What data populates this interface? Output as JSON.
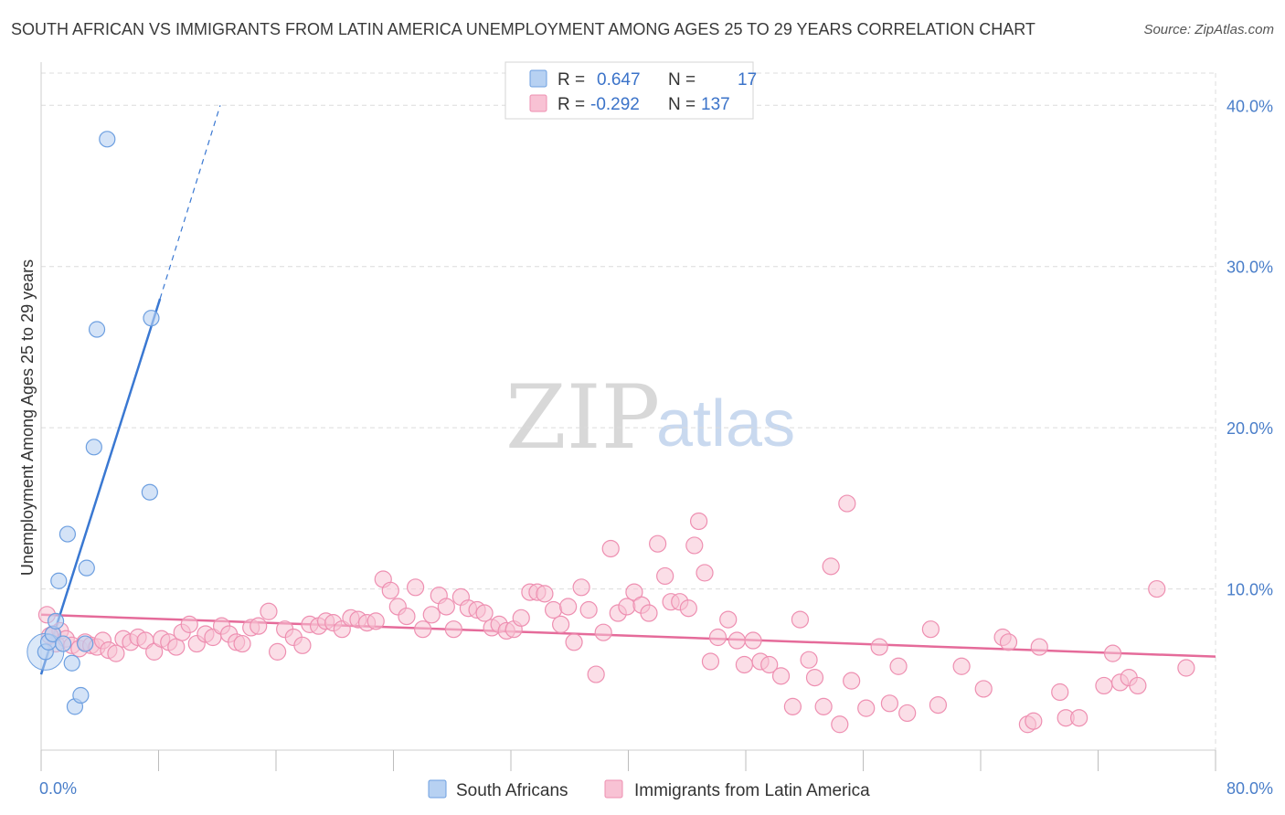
{
  "title": "SOUTH AFRICAN VS IMMIGRANTS FROM LATIN AMERICA UNEMPLOYMENT AMONG AGES 25 TO 29 YEARS CORRELATION CHART",
  "source": "Source: ZipAtlas.com",
  "watermark": {
    "zip": "ZIP",
    "atlas": "atlas"
  },
  "legend": {
    "series1": {
      "r_label": "R =",
      "r_value": "0.647",
      "n_label": "N =",
      "n_value": "17"
    },
    "series2": {
      "r_label": "R =",
      "r_value": "-0.292",
      "n_label": "N =",
      "n_value": "137"
    }
  },
  "colors": {
    "blue": "#3a78d2",
    "blue_fill": "#b7d1f2",
    "blue_stroke": "#6d9fe0",
    "pink": "#e56b9a",
    "pink_fill": "#f8c2d4",
    "pink_stroke": "#ee8fb1",
    "grid": "#dcdcdc",
    "tick_text": "#4a7ec9"
  },
  "chart_data": {
    "type": "scatter",
    "title": "SOUTH AFRICAN VS IMMIGRANTS FROM LATIN AMERICA UNEMPLOYMENT AMONG AGES 25 TO 29 YEARS CORRELATION CHART",
    "xlabel": "",
    "ylabel": "Unemployment Among Ages 25 to 29 years",
    "xlim": [
      0,
      80
    ],
    "ylim": [
      0,
      42
    ],
    "x_tick_labels": [
      "0.0%",
      "80.0%"
    ],
    "y_ticks": [
      10,
      20,
      30,
      40
    ],
    "y_tick_labels": [
      "10.0%",
      "20.0%",
      "30.0%",
      "40.0%"
    ],
    "grid": true,
    "legend_position": "top-center",
    "series": [
      {
        "name": "South Africans",
        "color": "#6d9fe0",
        "points": [
          [
            0.3,
            6.1
          ],
          [
            0.5,
            6.7
          ],
          [
            0.8,
            7.2
          ],
          [
            1.0,
            8.0
          ],
          [
            1.2,
            10.5
          ],
          [
            1.5,
            6.6
          ],
          [
            1.8,
            13.4
          ],
          [
            2.1,
            5.4
          ],
          [
            2.3,
            2.7
          ],
          [
            2.7,
            3.4
          ],
          [
            3.0,
            6.6
          ],
          [
            3.1,
            11.3
          ],
          [
            3.6,
            18.8
          ],
          [
            3.8,
            26.1
          ],
          [
            4.5,
            37.9
          ],
          [
            7.4,
            16.0
          ],
          [
            7.5,
            26.8
          ]
        ],
        "trend": {
          "x": [
            0.0,
            8.1
          ],
          "y": [
            4.7,
            28.0
          ],
          "dash_to": [
            12.2,
            40.0
          ]
        }
      },
      {
        "name": "Immigrants from Latin America",
        "color": "#ee8fb1",
        "points": [
          [
            0.4,
            8.4
          ],
          [
            0.8,
            7.2
          ],
          [
            1.0,
            6.6
          ],
          [
            1.3,
            7.4
          ],
          [
            1.7,
            6.9
          ],
          [
            2.1,
            6.5
          ],
          [
            2.6,
            6.3
          ],
          [
            3.0,
            6.7
          ],
          [
            3.4,
            6.5
          ],
          [
            3.8,
            6.4
          ],
          [
            4.2,
            6.8
          ],
          [
            4.6,
            6.2
          ],
          [
            5.1,
            6.0
          ],
          [
            5.6,
            6.9
          ],
          [
            6.1,
            6.7
          ],
          [
            6.6,
            7.0
          ],
          [
            7.1,
            6.8
          ],
          [
            7.7,
            6.1
          ],
          [
            8.2,
            6.9
          ],
          [
            8.7,
            6.7
          ],
          [
            9.2,
            6.4
          ],
          [
            9.6,
            7.3
          ],
          [
            10.1,
            7.8
          ],
          [
            10.6,
            6.6
          ],
          [
            11.2,
            7.2
          ],
          [
            11.7,
            7.0
          ],
          [
            12.3,
            7.7
          ],
          [
            12.8,
            7.2
          ],
          [
            13.3,
            6.7
          ],
          [
            13.7,
            6.6
          ],
          [
            14.3,
            7.6
          ],
          [
            14.8,
            7.7
          ],
          [
            15.5,
            8.6
          ],
          [
            16.1,
            6.1
          ],
          [
            16.6,
            7.5
          ],
          [
            17.2,
            7.0
          ],
          [
            17.8,
            6.5
          ],
          [
            18.3,
            7.8
          ],
          [
            18.9,
            7.7
          ],
          [
            19.4,
            8.0
          ],
          [
            19.9,
            7.9
          ],
          [
            20.5,
            7.5
          ],
          [
            21.1,
            8.2
          ],
          [
            21.6,
            8.1
          ],
          [
            22.2,
            7.9
          ],
          [
            22.8,
            8.0
          ],
          [
            23.3,
            10.6
          ],
          [
            23.8,
            9.9
          ],
          [
            24.3,
            8.9
          ],
          [
            24.9,
            8.3
          ],
          [
            25.5,
            10.1
          ],
          [
            26.0,
            7.5
          ],
          [
            26.6,
            8.4
          ],
          [
            27.1,
            9.6
          ],
          [
            27.6,
            8.9
          ],
          [
            28.1,
            7.5
          ],
          [
            28.6,
            9.5
          ],
          [
            29.1,
            8.8
          ],
          [
            29.7,
            8.7
          ],
          [
            30.2,
            8.5
          ],
          [
            30.7,
            7.6
          ],
          [
            31.2,
            7.8
          ],
          [
            31.7,
            7.4
          ],
          [
            32.2,
            7.5
          ],
          [
            32.7,
            8.2
          ],
          [
            33.3,
            9.8
          ],
          [
            33.8,
            9.8
          ],
          [
            34.3,
            9.7
          ],
          [
            34.9,
            8.7
          ],
          [
            35.4,
            7.8
          ],
          [
            35.9,
            8.9
          ],
          [
            36.3,
            6.7
          ],
          [
            36.8,
            10.1
          ],
          [
            37.3,
            8.7
          ],
          [
            37.8,
            4.7
          ],
          [
            38.3,
            7.3
          ],
          [
            38.8,
            12.5
          ],
          [
            39.3,
            8.5
          ],
          [
            39.9,
            8.9
          ],
          [
            40.4,
            9.8
          ],
          [
            40.9,
            9.0
          ],
          [
            41.4,
            8.5
          ],
          [
            42.0,
            12.8
          ],
          [
            42.5,
            10.8
          ],
          [
            42.9,
            9.2
          ],
          [
            43.5,
            9.2
          ],
          [
            44.1,
            8.8
          ],
          [
            44.5,
            12.7
          ],
          [
            44.8,
            14.2
          ],
          [
            45.2,
            11.0
          ],
          [
            45.6,
            5.5
          ],
          [
            46.1,
            7.0
          ],
          [
            46.8,
            8.1
          ],
          [
            47.4,
            6.8
          ],
          [
            47.9,
            5.3
          ],
          [
            48.5,
            6.8
          ],
          [
            49.0,
            5.5
          ],
          [
            49.6,
            5.3
          ],
          [
            50.4,
            4.6
          ],
          [
            51.2,
            2.7
          ],
          [
            51.7,
            8.1
          ],
          [
            52.3,
            5.6
          ],
          [
            52.7,
            4.5
          ],
          [
            53.3,
            2.7
          ],
          [
            53.8,
            11.4
          ],
          [
            54.4,
            1.6
          ],
          [
            54.9,
            15.3
          ],
          [
            55.2,
            4.3
          ],
          [
            56.2,
            2.6
          ],
          [
            57.1,
            6.4
          ],
          [
            57.8,
            2.9
          ],
          [
            58.4,
            5.2
          ],
          [
            59.0,
            2.3
          ],
          [
            60.6,
            7.5
          ],
          [
            61.1,
            2.8
          ],
          [
            62.7,
            5.2
          ],
          [
            64.2,
            3.8
          ],
          [
            65.5,
            7.0
          ],
          [
            65.9,
            6.7
          ],
          [
            67.2,
            1.6
          ],
          [
            67.6,
            1.8
          ],
          [
            68.0,
            6.4
          ],
          [
            69.4,
            3.6
          ],
          [
            69.8,
            2.0
          ],
          [
            70.7,
            2.0
          ],
          [
            72.4,
            4.0
          ],
          [
            73.0,
            6.0
          ],
          [
            73.5,
            4.2
          ],
          [
            74.1,
            4.5
          ],
          [
            74.7,
            4.0
          ],
          [
            76.0,
            10.0
          ],
          [
            78.0,
            5.1
          ],
          [
            0.6,
            7.1
          ]
        ],
        "trend": {
          "x": [
            0.0,
            80.0
          ],
          "y": [
            8.4,
            5.8
          ]
        }
      }
    ]
  }
}
